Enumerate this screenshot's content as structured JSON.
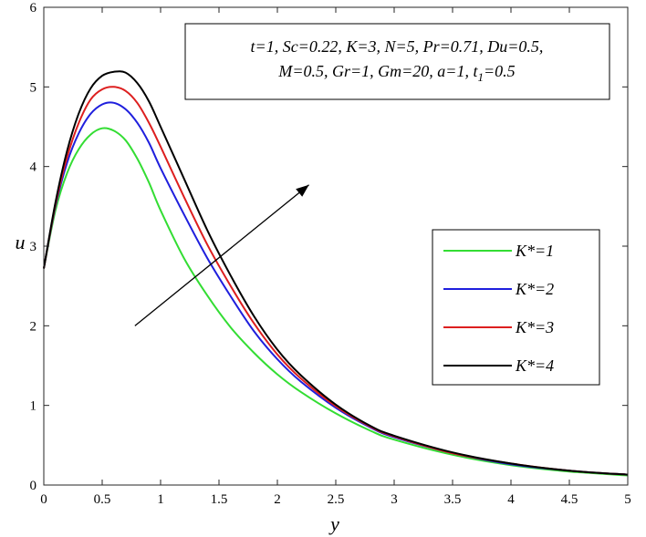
{
  "chart_data": {
    "type": "line",
    "xlabel": "y",
    "ylabel": "u",
    "xlim": [
      0,
      5
    ],
    "ylim": [
      0,
      6
    ],
    "xticks": [
      "0",
      "0.5",
      "1",
      "1.5",
      "2",
      "2.5",
      "3",
      "3.5",
      "4",
      "4.5",
      "5"
    ],
    "yticks": [
      "0",
      "1",
      "2",
      "3",
      "4",
      "5",
      "6"
    ],
    "grid": false,
    "legend_position": "right",
    "annotation": {
      "line1": "t=1, Sc=0.22, K=3, N=5, Pr=0.71, Du=0.5,",
      "line2_main": "M=0.5, Gr=1, Gm=20, a=1, t",
      "line2_sub": "1",
      "line2_tail": "=0.5"
    },
    "x": [
      0,
      0.1,
      0.2,
      0.3,
      0.4,
      0.5,
      0.6,
      0.7,
      0.8,
      0.9,
      1.0,
      1.2,
      1.4,
      1.6,
      1.8,
      2.0,
      2.2,
      2.5,
      2.8,
      3.0,
      3.5,
      4.0,
      4.5,
      5.0
    ],
    "series": [
      {
        "name": "K*=1",
        "color": "#33dd33",
        "values": [
          2.72,
          3.45,
          3.92,
          4.22,
          4.4,
          4.48,
          4.45,
          4.33,
          4.1,
          3.8,
          3.45,
          2.85,
          2.38,
          1.98,
          1.66,
          1.39,
          1.17,
          0.9,
          0.68,
          0.57,
          0.38,
          0.25,
          0.17,
          0.12
        ]
      },
      {
        "name": "K*=2",
        "color": "#1f1fdd",
        "values": [
          2.72,
          3.5,
          4.05,
          4.42,
          4.66,
          4.78,
          4.8,
          4.72,
          4.55,
          4.3,
          3.98,
          3.4,
          2.85,
          2.37,
          1.93,
          1.58,
          1.3,
          0.97,
          0.72,
          0.6,
          0.4,
          0.26,
          0.18,
          0.13
        ]
      },
      {
        "name": "K*=3",
        "color": "#dd1f1f",
        "values": [
          2.72,
          3.52,
          4.12,
          4.55,
          4.84,
          4.97,
          5.0,
          4.95,
          4.8,
          4.55,
          4.25,
          3.62,
          3.02,
          2.5,
          2.03,
          1.64,
          1.34,
          0.99,
          0.73,
          0.61,
          0.4,
          0.27,
          0.18,
          0.13
        ]
      },
      {
        "name": "K*=4",
        "color": "#000000",
        "values": [
          2.72,
          3.55,
          4.2,
          4.67,
          4.98,
          5.14,
          5.19,
          5.18,
          5.05,
          4.82,
          4.5,
          3.85,
          3.2,
          2.63,
          2.12,
          1.7,
          1.38,
          1.01,
          0.74,
          0.62,
          0.41,
          0.27,
          0.18,
          0.13
        ]
      }
    ],
    "arrow": {
      "from": [
        0.78,
        2.0
      ],
      "to": [
        2.27,
        3.77
      ]
    }
  }
}
